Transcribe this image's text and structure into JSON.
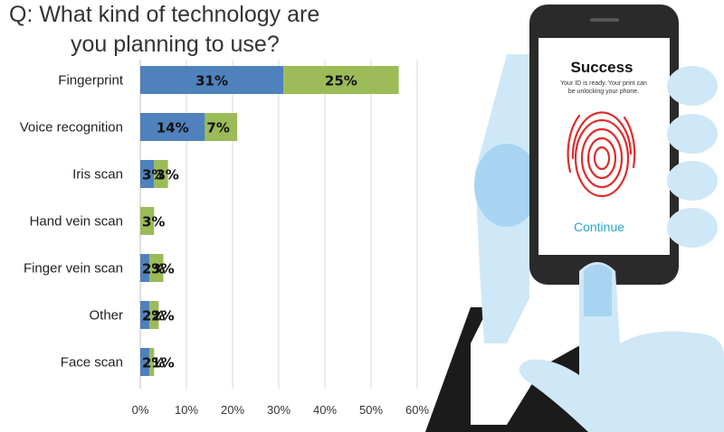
{
  "chart_data": {
    "type": "bar",
    "stacked": true,
    "orientation": "horizontal",
    "title_lines": [
      "Q: What kind of technology are",
      "you planning to use?"
    ],
    "categories": [
      "Fingerprint",
      "Voice recognition",
      "Iris scan",
      "Hand vein scan",
      "Finger vein scan",
      "Other",
      "Face scan"
    ],
    "series": [
      {
        "values": [
          31,
          14,
          3,
          0,
          2,
          2,
          2
        ],
        "labels": [
          "31%",
          "14%",
          "3%",
          "",
          "2%",
          "2%",
          "2%"
        ],
        "color": "#4f81bd"
      },
      {
        "values": [
          25,
          7,
          3,
          3,
          3,
          2,
          1
        ],
        "labels": [
          "25%",
          "7%",
          "3%",
          "3%",
          "3%",
          "2%",
          "1%"
        ],
        "color": "#9bbb59"
      }
    ],
    "x_ticks": [
      "0%",
      "10%",
      "20%",
      "30%",
      "40%",
      "50%",
      "60%"
    ],
    "xlim": [
      0,
      60
    ],
    "grid": true
  },
  "phone": {
    "title": "Success",
    "subtitle_lines": [
      "Your ID is ready. Your print can",
      "be unlocking your phone."
    ],
    "cta": "Continue"
  },
  "colors": {
    "skin": "#cfe8f8",
    "skin_dark": "#a7d4f1",
    "sleeve": "#1b1b1b",
    "phone_body": "#2a2a2a",
    "fingerprint": "#e02b2b"
  },
  "icons": [
    "fingerprint-icon"
  ]
}
